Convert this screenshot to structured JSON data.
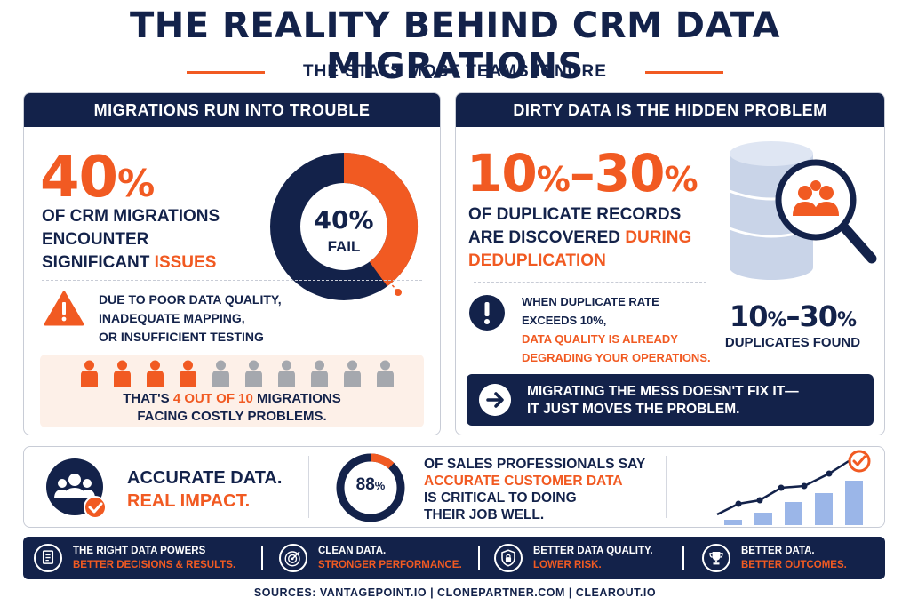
{
  "title": "THE REALITY BEHIND CRM DATA MIGRATIONS",
  "subtitle": "THE STATS MOST TEAMS IGNORE",
  "colors": {
    "navy": "#13224a",
    "orange": "#f15a22",
    "gray": "#a5a8ae",
    "light_blue": "#9bb6e8"
  },
  "left_panel": {
    "header": "MIGRATIONS RUN INTO TROUBLE",
    "big_stat_number": "40",
    "big_stat_pct": "%",
    "desc_line1": "OF CRM MIGRATIONS",
    "desc_line2": "ENCOUNTER",
    "desc_line3_a": "SIGNIFICANT ",
    "desc_line3_b": "ISSUES",
    "donut": {
      "value_fraction": 0.4,
      "center_value": "40%",
      "center_label": "FAIL"
    },
    "warning_icon": "warning-triangle-icon",
    "warning_lines": [
      "DUE TO POOR DATA QUALITY,",
      "INADEQUATE MAPPING,",
      "OR INSUFFICIENT TESTING"
    ],
    "people": {
      "highlighted": 4,
      "total": 10
    },
    "people_text_a": "THAT'S ",
    "people_text_b": "4 OUT OF 10",
    "people_text_c": " MIGRATIONS",
    "people_text_line2": "FACING COSTLY PROBLEMS."
  },
  "right_panel": {
    "header": "DIRTY DATA IS THE HIDDEN PROBLEM",
    "big_a": "10",
    "big_b": "%",
    "big_c": "–30",
    "big_d": "%",
    "desc_line1": "OF DUPLICATE RECORDS",
    "desc_line2_a": "ARE DISCOVERED ",
    "desc_line2_b": "DURING",
    "desc_line3": "DEDUPLICATION",
    "illustration_icon": "database-magnifier-icon",
    "alert_icon": "exclamation-icon",
    "alert_line1": "WHEN DUPLICATE RATE",
    "alert_line2": "EXCEEDS 10%,",
    "alert_line3": "DATA QUALITY IS ALREADY",
    "alert_line4": "DEGRADING YOUR OPERATIONS.",
    "dup_a": "10",
    "dup_b": "%",
    "dup_c": "–30",
    "dup_d": "%",
    "dup_label": "DUPLICATES FOUND",
    "mess_line1": "MIGRATING THE MESS DOESN'T FIX IT—",
    "mess_line2": "IT JUST MOVES THE PROBLEM."
  },
  "middle": {
    "team_icon": "team-check-icon",
    "accurate_line1": "ACCURATE DATA.",
    "accurate_line2": "REAL IMPACT.",
    "ring": {
      "value_fraction": 0.88,
      "number": "88",
      "pct": "%"
    },
    "sales_line1": "OF SALES PROFESSIONALS SAY",
    "sales_line2": "ACCURATE CUSTOMER DATA",
    "sales_line3": "IS CRITICAL TO DOING",
    "sales_line4": "THEIR JOB WELL.",
    "growth_icon": "growth-chart-icon"
  },
  "bottom_bar": [
    {
      "icon": "document-icon",
      "line1": "THE RIGHT DATA POWERS",
      "line2": "BETTER DECISIONS & RESULTS."
    },
    {
      "icon": "target-icon",
      "line1": "CLEAN DATA.",
      "line2": "STRONGER PERFORMANCE."
    },
    {
      "icon": "shield-lock-icon",
      "line1": "BETTER DATA QUALITY.",
      "line2": "LOWER RISK."
    },
    {
      "icon": "trophy-icon",
      "line1": "BETTER DATA.",
      "line2": "BETTER OUTCOMES."
    }
  ],
  "sources": "SOURCES: VANTAGEPOINT.IO   |   CLONEPARTNER.COM   |   CLEAROUT.IO"
}
